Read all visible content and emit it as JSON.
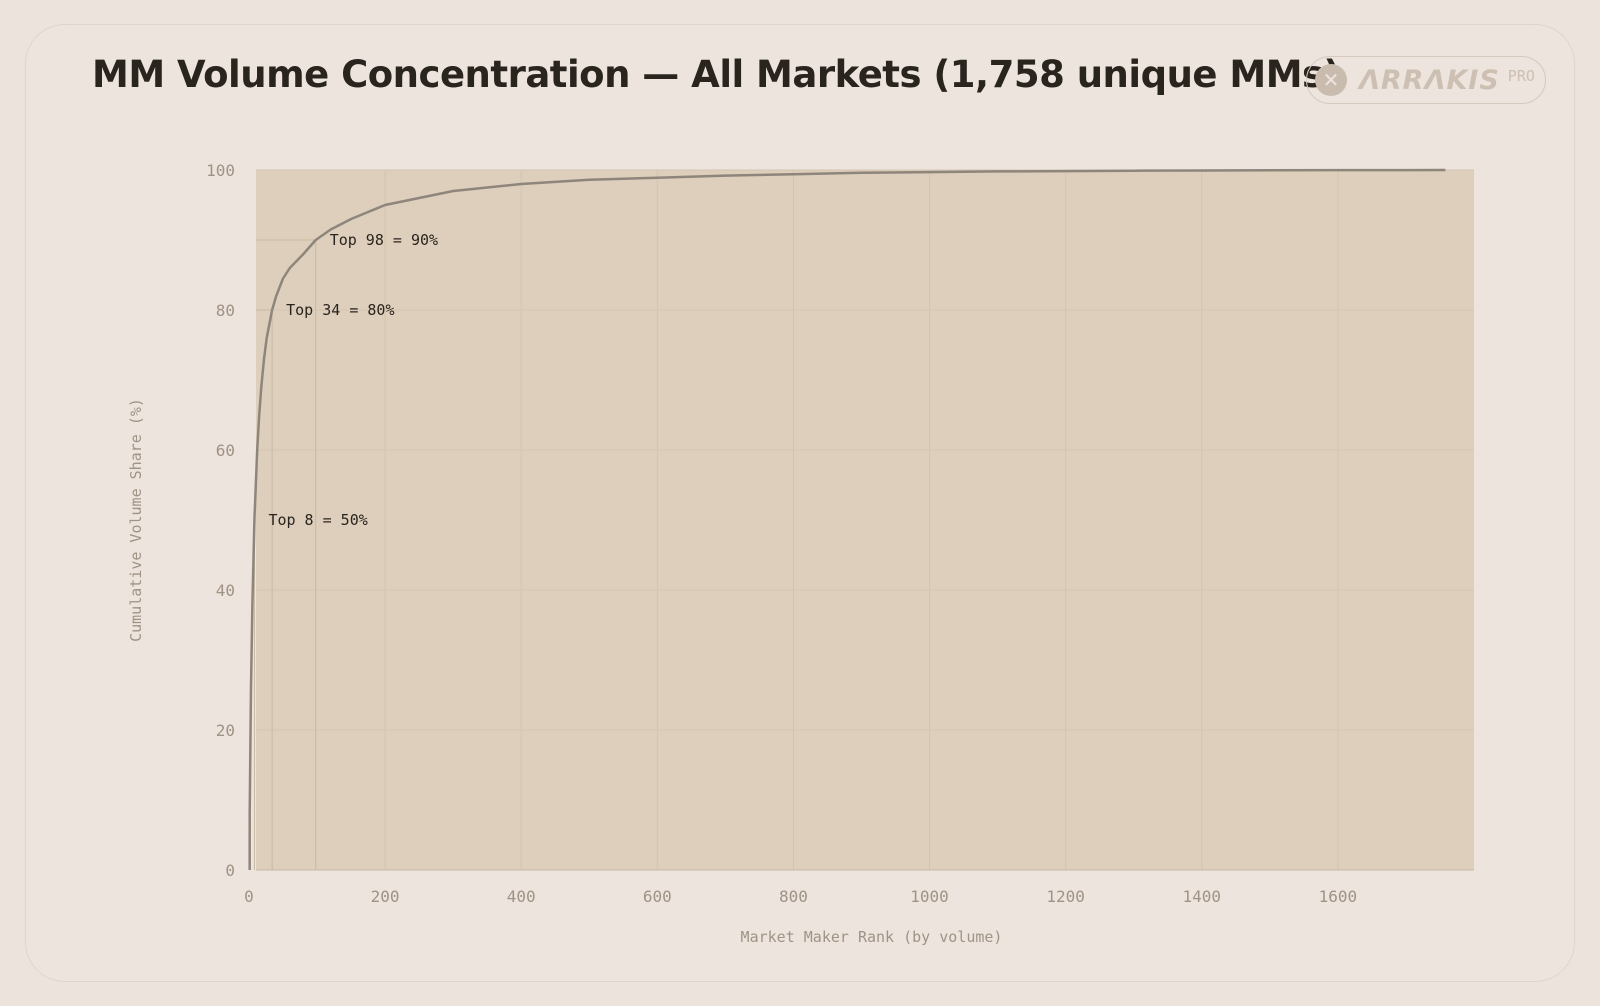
{
  "header": {
    "title": "MM Volume Concentration — All Markets (1,758 unique MMs)",
    "logo_text": "ΛRRΛKIS",
    "logo_badge": "PRO",
    "logo_icon": "x-circle-icon"
  },
  "colors": {
    "background": "#ebe3dc",
    "fill": "#ddcfbb",
    "line": "#8e857b",
    "grid": "#d2c4b0",
    "tick_text": "#a09385",
    "annotation_text": "#2a241f"
  },
  "chart_data": {
    "type": "area",
    "title": "MM Volume Concentration — All Markets (1,758 unique MMs)",
    "xlabel": "Market Maker Rank (by volume)",
    "ylabel": "Cumulative Volume Share (%)",
    "xlim": [
      0,
      1800
    ],
    "ylim": [
      0,
      100
    ],
    "x_ticks": [
      0,
      200,
      400,
      600,
      800,
      1000,
      1200,
      1400,
      1600
    ],
    "y_ticks": [
      0,
      20,
      40,
      60,
      80,
      100
    ],
    "grid": true,
    "series": [
      {
        "x": [
          1,
          2,
          3,
          4,
          5,
          6,
          8,
          10,
          12,
          15,
          18,
          22,
          26,
          30,
          34,
          40,
          50,
          60,
          70,
          80,
          98,
          120,
          150,
          200,
          250,
          300,
          400,
          500,
          600,
          700,
          800,
          900,
          1000,
          1100,
          1200,
          1300,
          1400,
          1500,
          1600,
          1700,
          1758
        ],
        "y": [
          8,
          18,
          26,
          32,
          38,
          42,
          50,
          55,
          60,
          65,
          69,
          73,
          76,
          78,
          80,
          82,
          84.5,
          86,
          87,
          88,
          90,
          91.5,
          93,
          95,
          96,
          97,
          98,
          98.6,
          98.9,
          99.2,
          99.4,
          99.6,
          99.7,
          99.8,
          99.85,
          99.9,
          99.93,
          99.96,
          99.98,
          99.99,
          100
        ]
      }
    ],
    "annotations": [
      {
        "text": "Top 8 = 50%",
        "x": 8,
        "y": 50
      },
      {
        "text": "Top 34 = 80%",
        "x": 34,
        "y": 80
      },
      {
        "text": "Top 98 = 90%",
        "x": 98,
        "y": 90
      }
    ]
  }
}
